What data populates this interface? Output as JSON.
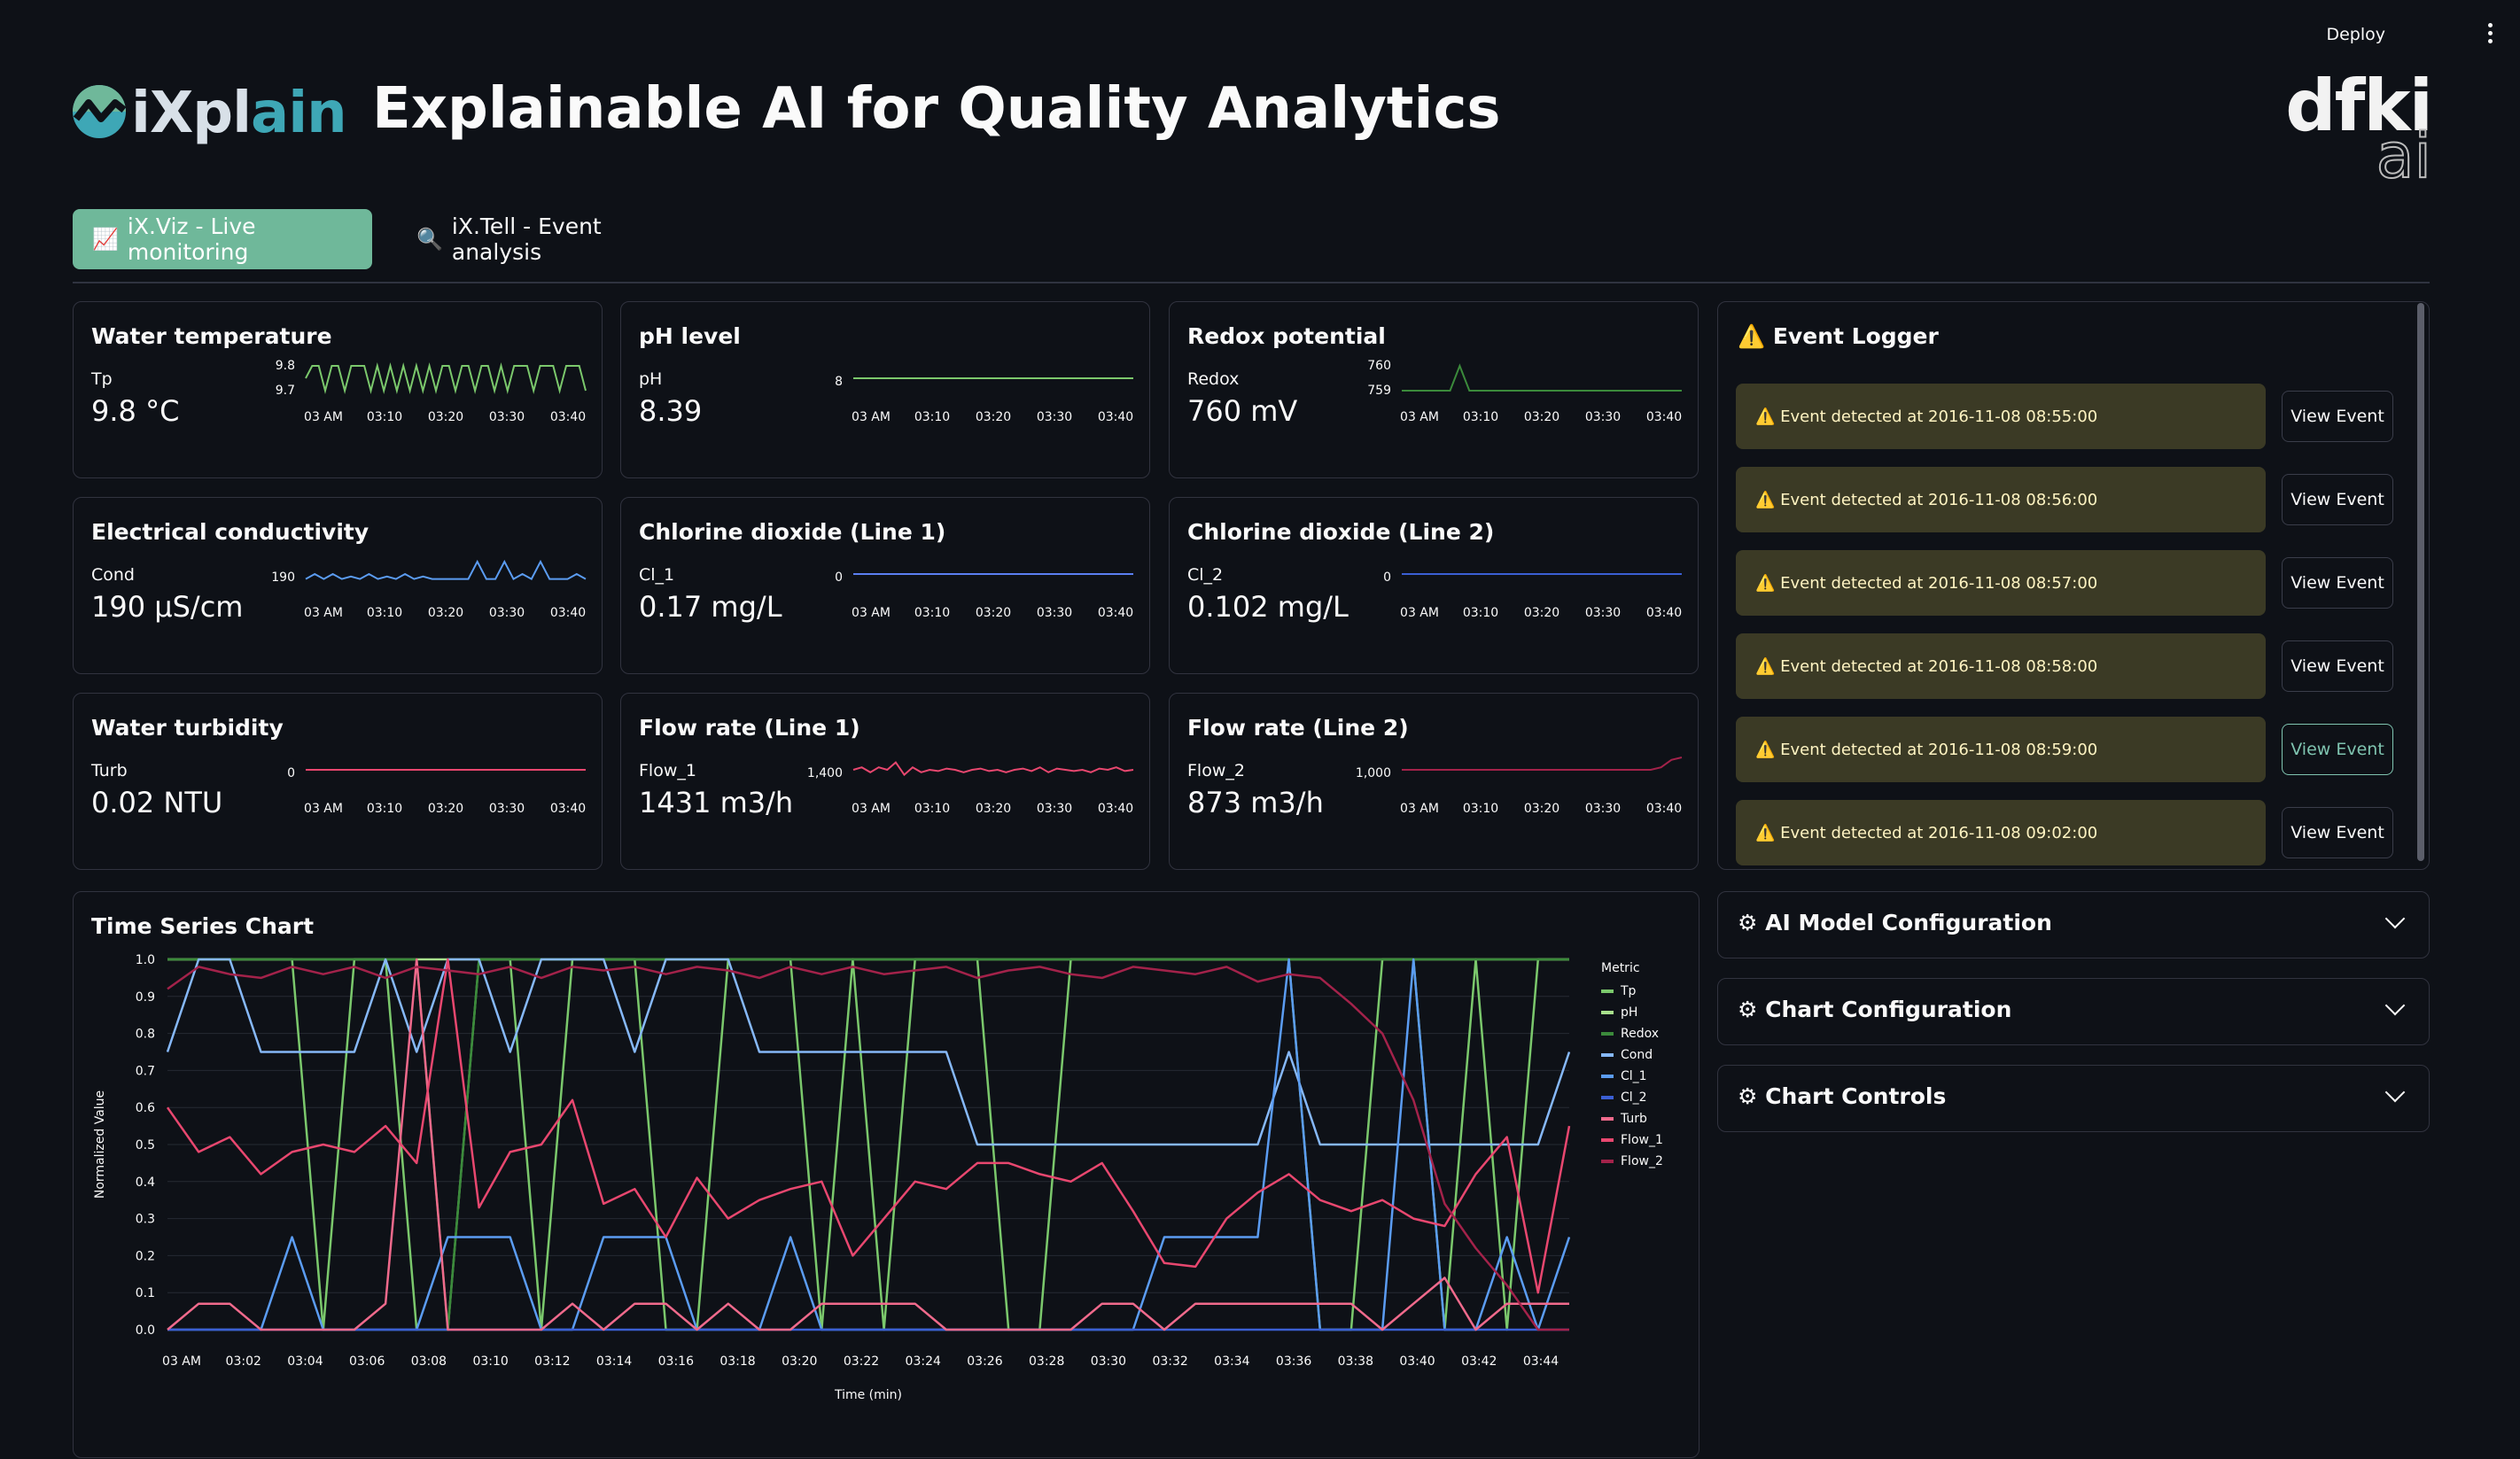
{
  "header": {
    "deploy_label": "Deploy",
    "logo_text_a": "iXpl",
    "logo_text_b": "ain",
    "title": "Explainable AI for Quality Analytics",
    "partner_logo_top": "dfki",
    "partner_logo_bottom": "ai"
  },
  "tabs": [
    {
      "icon": "📈",
      "label": "iX.Viz - Live monitoring",
      "active": true
    },
    {
      "icon": "🔍",
      "label": "iX.Tell - Event analysis",
      "active": false
    }
  ],
  "colors": {
    "green": "#7bc86c",
    "blue": "#5b9cf2",
    "pink": "#e8476f",
    "darkgreen": "#3b8a3b",
    "darkblue": "#3b5fd4",
    "maroon": "#a3224a"
  },
  "metrics": [
    {
      "title": "Water temperature",
      "label": "Tp",
      "value": "9.8 °C",
      "color": "#7bc86c",
      "yticks": [
        "9.8",
        "9.7"
      ],
      "xticks": [
        "03 AM",
        "03:10",
        "03:20",
        "03:30",
        "03:40"
      ]
    },
    {
      "title": "pH level",
      "label": "pH",
      "value": "8.39",
      "color": "#7bc86c",
      "yticks": [
        "8"
      ],
      "xticks": [
        "03 AM",
        "03:10",
        "03:20",
        "03:30",
        "03:40"
      ]
    },
    {
      "title": "Redox potential",
      "label": "Redox",
      "value": "760 mV",
      "color": "#3b8a3b",
      "yticks": [
        "760",
        "759"
      ],
      "xticks": [
        "03 AM",
        "03:10",
        "03:20",
        "03:30",
        "03:40"
      ]
    },
    {
      "title": "Electrical conductivity",
      "label": "Cond",
      "value": "190 µS/cm",
      "color": "#5b9cf2",
      "yticks": [
        "190"
      ],
      "xticks": [
        "03 AM",
        "03:10",
        "03:20",
        "03:30",
        "03:40"
      ]
    },
    {
      "title": "Chlorine dioxide (Line 1)",
      "label": "Cl_1",
      "value": "0.17 mg/L",
      "color": "#5b7ff2",
      "yticks": [
        "0"
      ],
      "xticks": [
        "03 AM",
        "03:10",
        "03:20",
        "03:30",
        "03:40"
      ]
    },
    {
      "title": "Chlorine dioxide (Line 2)",
      "label": "Cl_2",
      "value": "0.102 mg/L",
      "color": "#3b5fd4",
      "yticks": [
        "0"
      ],
      "xticks": [
        "03 AM",
        "03:10",
        "03:20",
        "03:30",
        "03:40"
      ]
    },
    {
      "title": "Water turbidity",
      "label": "Turb",
      "value": "0.02 NTU",
      "color": "#e8476f",
      "yticks": [
        "0"
      ],
      "xticks": [
        "03 AM",
        "03:10",
        "03:20",
        "03:30",
        "03:40"
      ]
    },
    {
      "title": "Flow rate (Line 1)",
      "label": "Flow_1",
      "value": "1431 m3/h",
      "color": "#e8476f",
      "yticks": [
        "1,400"
      ],
      "xticks": [
        "03 AM",
        "03:10",
        "03:20",
        "03:30",
        "03:40"
      ]
    },
    {
      "title": "Flow rate (Line 2)",
      "label": "Flow_2",
      "value": "873 m3/h",
      "color": "#a3224a",
      "yticks": [
        "1,000"
      ],
      "xticks": [
        "03 AM",
        "03:10",
        "03:20",
        "03:30",
        "03:40"
      ]
    }
  ],
  "event_logger": {
    "title": "Event Logger",
    "events": [
      {
        "text": "Event detected at 2016-11-08 08:55:00",
        "button": "View Event"
      },
      {
        "text": "Event detected at 2016-11-08 08:56:00",
        "button": "View Event"
      },
      {
        "text": "Event detected at 2016-11-08 08:57:00",
        "button": "View Event"
      },
      {
        "text": "Event detected at 2016-11-08 08:58:00",
        "button": "View Event"
      },
      {
        "text": "Event detected at 2016-11-08 08:59:00",
        "button": "View Event"
      },
      {
        "text": "Event detected at 2016-11-08 09:02:00",
        "button": "View Event"
      }
    ]
  },
  "expanders": [
    {
      "label": "AI Model Configuration"
    },
    {
      "label": "Chart Configuration"
    },
    {
      "label": "Chart Controls"
    }
  ],
  "chart_data": {
    "type": "line",
    "title": "Time Series Chart",
    "xlabel": "Time (min)",
    "ylabel": "Normalized Value",
    "ylim": [
      0,
      1
    ],
    "yticks": [
      "0.0",
      "0.1",
      "0.2",
      "0.3",
      "0.4",
      "0.5",
      "0.6",
      "0.7",
      "0.8",
      "0.9",
      "1.0"
    ],
    "xticks": [
      "03 AM",
      "03:02",
      "03:04",
      "03:06",
      "03:08",
      "03:10",
      "03:12",
      "03:14",
      "03:16",
      "03:18",
      "03:20",
      "03:22",
      "03:24",
      "03:26",
      "03:28",
      "03:30",
      "03:32",
      "03:34",
      "03:36",
      "03:38",
      "03:40",
      "03:42",
      "03:44"
    ],
    "legend_title": "Metric",
    "legend_position": "right",
    "x": [
      0,
      1,
      2,
      3,
      4,
      5,
      6,
      7,
      8,
      9,
      10,
      11,
      12,
      13,
      14,
      15,
      16,
      17,
      18,
      19,
      20,
      21,
      22,
      23,
      24,
      25,
      26,
      27,
      28,
      29,
      30,
      31,
      32,
      33,
      34,
      35,
      36,
      37,
      38,
      39,
      40,
      41,
      42,
      43,
      44,
      45
    ],
    "series": [
      {
        "name": "Tp",
        "color": "#7bc86c",
        "values": [
          1,
          1,
          1,
          1,
          1,
          0,
          1,
          1,
          0,
          0,
          1,
          1,
          0,
          1,
          1,
          1,
          0,
          0,
          1,
          1,
          1,
          0,
          1,
          0,
          1,
          1,
          1,
          0,
          0,
          1,
          1,
          1,
          1,
          1,
          1,
          1,
          1,
          0,
          0,
          1,
          1,
          0,
          1,
          0,
          1,
          1
        ]
      },
      {
        "name": "pH",
        "color": "#a8e08c",
        "values": [
          1,
          1,
          1,
          1,
          1,
          1,
          1,
          1,
          1,
          1,
          1,
          1,
          1,
          1,
          1,
          1,
          1,
          1,
          1,
          1,
          1,
          1,
          1,
          1,
          1,
          1,
          1,
          1,
          1,
          1,
          1,
          1,
          1,
          1,
          1,
          1,
          1,
          1,
          1,
          1,
          1,
          1,
          1,
          1,
          1,
          1
        ]
      },
      {
        "name": "Redox",
        "color": "#3b8a3b",
        "values": [
          1,
          1,
          1,
          1,
          1,
          1,
          1,
          1,
          1,
          0,
          1,
          1,
          1,
          1,
          1,
          1,
          1,
          1,
          1,
          1,
          1,
          1,
          1,
          1,
          1,
          1,
          1,
          1,
          1,
          1,
          1,
          1,
          1,
          1,
          1,
          1,
          1,
          1,
          1,
          1,
          1,
          1,
          1,
          1,
          1,
          1
        ]
      },
      {
        "name": "Cond",
        "color": "#86b8f8",
        "values": [
          0.75,
          1,
          1,
          0.75,
          0.75,
          0.75,
          0.75,
          1,
          0.75,
          1,
          1,
          0.75,
          1,
          1,
          1,
          0.75,
          1,
          1,
          1,
          0.75,
          0.75,
          0.75,
          0.75,
          0.75,
          0.75,
          0.75,
          0.5,
          0.5,
          0.5,
          0.5,
          0.5,
          0.5,
          0.5,
          0.5,
          0.5,
          0.5,
          0.75,
          0.5,
          0.5,
          0.5,
          0.5,
          0.5,
          0.5,
          0.5,
          0.5,
          0.75
        ]
      },
      {
        "name": "Cl_1",
        "color": "#5b9cf2",
        "values": [
          0,
          0,
          0,
          0,
          0.25,
          0,
          0,
          0,
          0,
          0.25,
          0.25,
          0.25,
          0,
          0,
          0.25,
          0.25,
          0.25,
          0,
          0,
          0,
          0.25,
          0,
          0,
          0,
          0,
          0,
          0,
          0,
          0,
          0,
          0,
          0,
          0.25,
          0.25,
          0.25,
          0.25,
          1,
          0,
          0,
          0,
          1,
          0,
          0,
          0.25,
          0,
          0.25
        ]
      },
      {
        "name": "Cl_2",
        "color": "#3b5fd4",
        "values": [
          0,
          0,
          0,
          0,
          0,
          0,
          0,
          0,
          0,
          0,
          0,
          0,
          0,
          0,
          0,
          0,
          0,
          0,
          0,
          0,
          0,
          0,
          0,
          0,
          0,
          0,
          0,
          0,
          0,
          0,
          0,
          0,
          0,
          0,
          0,
          0,
          0,
          0,
          0,
          0,
          0,
          0,
          0,
          0,
          0,
          0
        ]
      },
      {
        "name": "Turb",
        "color": "#f06a8c",
        "values": [
          0,
          0.07,
          0.07,
          0,
          0,
          0,
          0,
          0.07,
          1,
          0,
          0,
          0,
          0,
          0.07,
          0,
          0.07,
          0.07,
          0,
          0.07,
          0,
          0,
          0.07,
          0.07,
          0.07,
          0.07,
          0,
          0,
          0,
          0,
          0,
          0.07,
          0.07,
          0,
          0.07,
          0.07,
          0.07,
          0.07,
          0.07,
          0.07,
          0,
          0.07,
          0.14,
          0,
          0.07,
          0.07,
          0.07
        ]
      },
      {
        "name": "Flow_1",
        "color": "#e8476f",
        "values": [
          0.6,
          0.48,
          0.52,
          0.42,
          0.48,
          0.5,
          0.48,
          0.55,
          0.45,
          1,
          0.33,
          0.48,
          0.5,
          0.62,
          0.34,
          0.38,
          0.25,
          0.41,
          0.3,
          0.35,
          0.38,
          0.4,
          0.2,
          0.3,
          0.4,
          0.38,
          0.45,
          0.45,
          0.42,
          0.4,
          0.45,
          0.32,
          0.18,
          0.17,
          0.3,
          0.37,
          0.42,
          0.35,
          0.32,
          0.35,
          0.3,
          0.28,
          0.42,
          0.52,
          0.1,
          0.55
        ]
      },
      {
        "name": "Flow_2",
        "color": "#a3224a",
        "values": [
          0.92,
          0.98,
          0.96,
          0.95,
          0.98,
          0.96,
          0.98,
          0.95,
          0.98,
          0.97,
          0.96,
          0.98,
          0.95,
          0.98,
          0.97,
          0.98,
          0.96,
          0.98,
          0.97,
          0.95,
          0.98,
          0.96,
          0.98,
          0.96,
          0.97,
          0.98,
          0.95,
          0.97,
          0.98,
          0.96,
          0.95,
          0.98,
          0.97,
          0.96,
          0.98,
          0.94,
          0.96,
          0.95,
          0.88,
          0.8,
          0.62,
          0.34,
          0.22,
          0.12,
          0,
          0
        ]
      }
    ]
  }
}
